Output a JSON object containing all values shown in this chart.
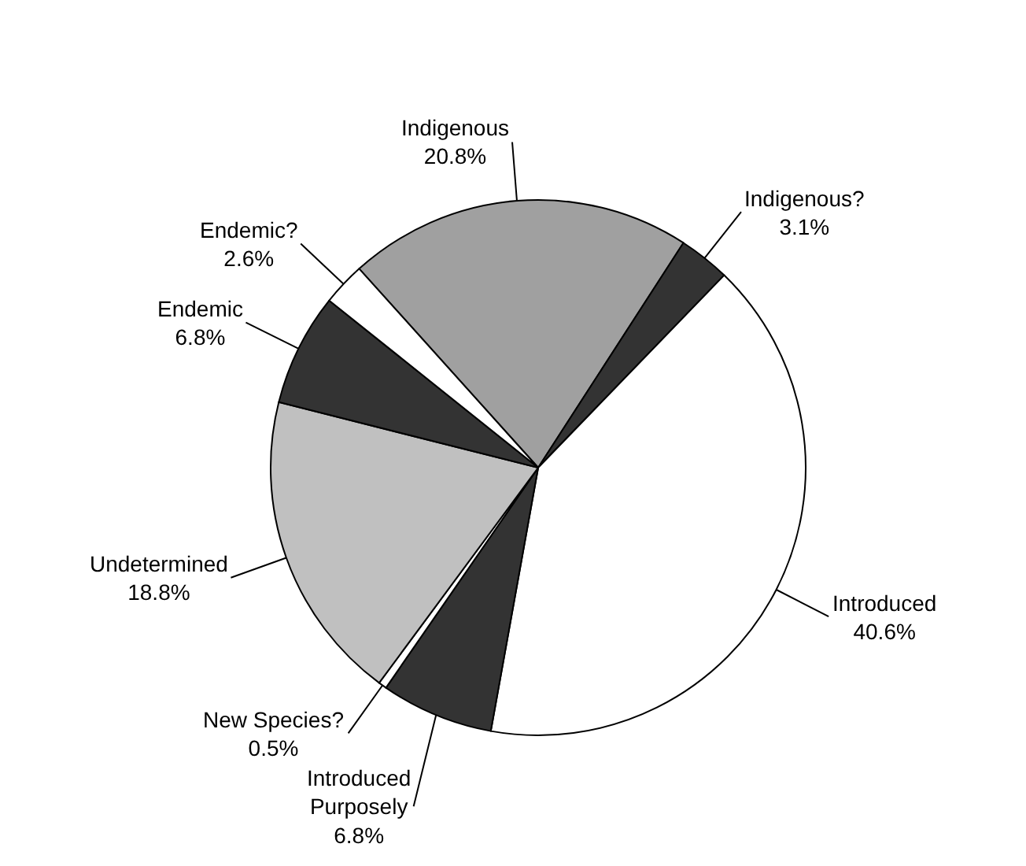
{
  "chart_data": {
    "type": "pie",
    "categories": [
      "Indigenous",
      "Indigenous?",
      "Introduced",
      "Introduced\nPurposely",
      "New Species?",
      "Undetermined",
      "Endemic",
      "Endemic?"
    ],
    "values": [
      20.8,
      3.1,
      40.6,
      6.8,
      0.5,
      18.8,
      6.8,
      2.6
    ],
    "value_labels": [
      "20.8%",
      "3.1%",
      "40.6%",
      "6.8%",
      "0.5%",
      "18.8%",
      "6.8%",
      "2.6%"
    ],
    "colors": [
      "#a0a0a0",
      "#333333",
      "#ffffff",
      "#333333",
      "#ffffff",
      "#c0c0c0",
      "#333333",
      "#ffffff"
    ],
    "legend": false
  }
}
